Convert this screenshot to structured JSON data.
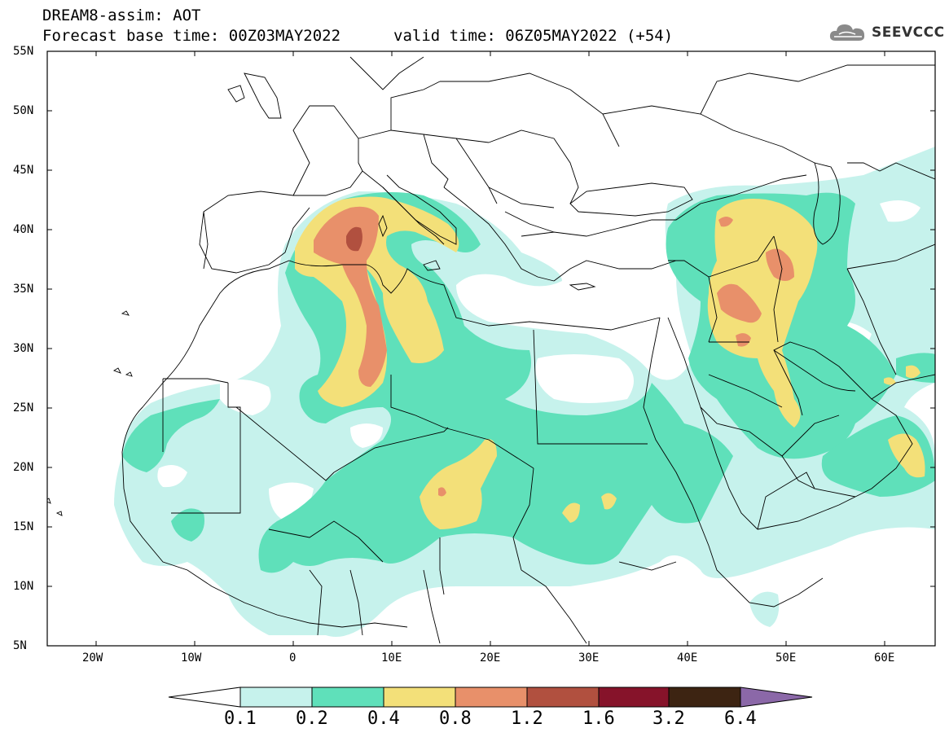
{
  "title": {
    "line1": "DREAM8-assim: AOT",
    "line2": "Forecast base time: 00Z03MAY2022",
    "valid": "valid time: 06Z05MAY2022 (+54)"
  },
  "logo": {
    "icon": "cloud-icon",
    "text": "SEEVCCC"
  },
  "map": {
    "lon_range": [
      -25,
      65
    ],
    "lat_range": [
      5,
      55
    ],
    "lat_ticks": [
      "5N",
      "10N",
      "15N",
      "20N",
      "25N",
      "30N",
      "35N",
      "40N",
      "45N",
      "50N",
      "55N"
    ],
    "lon_ticks": [
      "20W",
      "10W",
      "0",
      "10E",
      "20E",
      "30E",
      "40E",
      "50E",
      "60E"
    ]
  },
  "colorbar": {
    "levels": [
      "0.1",
      "0.2",
      "0.4",
      "0.8",
      "1.2",
      "1.6",
      "3.2",
      "6.4"
    ],
    "colors": [
      "#c6f2ec",
      "#5fe0ba",
      "#f3e079",
      "#e8906a",
      "#b1503f",
      "#86132a",
      "#3d2412"
    ],
    "under_color": "#ffffff",
    "over_color": "#8b68a8"
  }
}
